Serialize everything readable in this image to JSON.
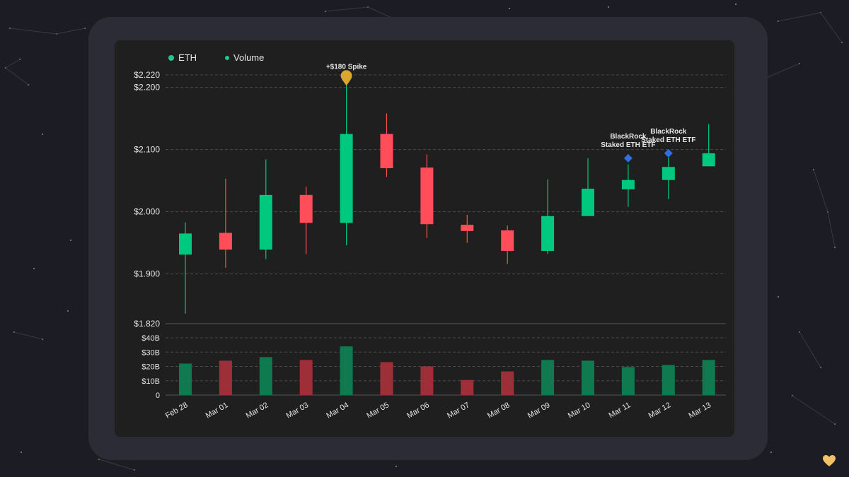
{
  "colors": {
    "up": "#00c87f",
    "down": "#ff4d5a",
    "volume_up": "#0f7a4f",
    "volume_down": "#9e2f38",
    "annotation_spike": "#d9a62e",
    "annotation_etf": "#2f6fe0",
    "grid": "#4a4a4a",
    "text": "#e6e6e6"
  },
  "legend": [
    {
      "label": "ETH",
      "icon": "green-dot"
    },
    {
      "label": "Volume",
      "icon": "green-dot"
    }
  ],
  "chart_data": {
    "type": "candlestick",
    "price_axis": {
      "ticks": [
        {
          "value": 1820,
          "label": "$1.820"
        },
        {
          "value": 1900,
          "label": "$1.900"
        },
        {
          "value": 2000,
          "label": "$2.000"
        },
        {
          "value": 2100,
          "label": "$2.100"
        },
        {
          "value": 2200,
          "label": "$2.200"
        },
        {
          "value": 2220,
          "label": "$2.220"
        }
      ],
      "range": [
        1820,
        2220
      ],
      "grid": "dashed"
    },
    "volume_axis": {
      "ticks": [
        {
          "value": 0,
          "label": "0"
        },
        {
          "value": 10,
          "label": "$10B"
        },
        {
          "value": 20,
          "label": "$20B"
        },
        {
          "value": 30,
          "label": "$30B"
        },
        {
          "value": 40,
          "label": "$40B"
        }
      ],
      "range": [
        0,
        40
      ],
      "unit": "billion USD"
    },
    "categories": [
      "Feb 28",
      "Mar 01",
      "Mar 02",
      "Mar 03",
      "Mar 04",
      "Mar 05",
      "Mar 06",
      "Mar 07",
      "Mar 08",
      "Mar 09",
      "Mar 10",
      "Mar 11",
      "Mar 12",
      "Mar 13"
    ],
    "candles": [
      {
        "date": "Feb 28",
        "open": 1931,
        "high": 1983,
        "low": 1836,
        "close": 1965
      },
      {
        "date": "Mar 01",
        "open": 1966,
        "high": 2053,
        "low": 1910,
        "close": 1939
      },
      {
        "date": "Mar 02",
        "open": 1939,
        "high": 2084,
        "low": 1924,
        "close": 2027
      },
      {
        "date": "Mar 03",
        "open": 2027,
        "high": 2040,
        "low": 1932,
        "close": 1982
      },
      {
        "date": "Mar 04",
        "open": 1982,
        "high": 2204,
        "low": 1946,
        "close": 2125
      },
      {
        "date": "Mar 05",
        "open": 2125,
        "high": 2158,
        "low": 2056,
        "close": 2070
      },
      {
        "date": "Mar 06",
        "open": 2071,
        "high": 2092,
        "low": 1958,
        "close": 1980
      },
      {
        "date": "Mar 07",
        "open": 1979,
        "high": 1995,
        "low": 1950,
        "close": 1969
      },
      {
        "date": "Mar 08",
        "open": 1970,
        "high": 1978,
        "low": 1916,
        "close": 1937
      },
      {
        "date": "Mar 09",
        "open": 1937,
        "high": 2052,
        "low": 1932,
        "close": 1993
      },
      {
        "date": "Mar 10",
        "open": 1993,
        "high": 2086,
        "low": 1993,
        "close": 2037
      },
      {
        "date": "Mar 11",
        "open": 2036,
        "high": 2076,
        "low": 2008,
        "close": 2051
      },
      {
        "date": "Mar 12",
        "open": 2051,
        "high": 2087,
        "low": 2020,
        "close": 2072
      },
      {
        "date": "Mar 13",
        "open": 2073,
        "high": 2141,
        "low": 2073,
        "close": 2094
      }
    ],
    "volume": [
      22,
      24,
      26.5,
      24.5,
      34,
      23,
      20,
      10.5,
      16.5,
      24.5,
      24,
      19.5,
      21,
      24.5
    ],
    "annotations": [
      {
        "date": "Mar 04",
        "price": 2214,
        "label": "+$180 Spike",
        "marker": "pin"
      },
      {
        "date": "Mar 11",
        "price": 2086,
        "label": "BlackRock Staked ETH ETF",
        "lines": [
          "BlackRock",
          "Staked ETH ETF"
        ],
        "marker": "diamond"
      },
      {
        "date": "Mar 12",
        "price": 2094,
        "label": "BlackRock Staked ETH ETF",
        "lines": [
          "BlackRock",
          "Staked ETH ETF"
        ],
        "marker": "diamond"
      }
    ]
  }
}
